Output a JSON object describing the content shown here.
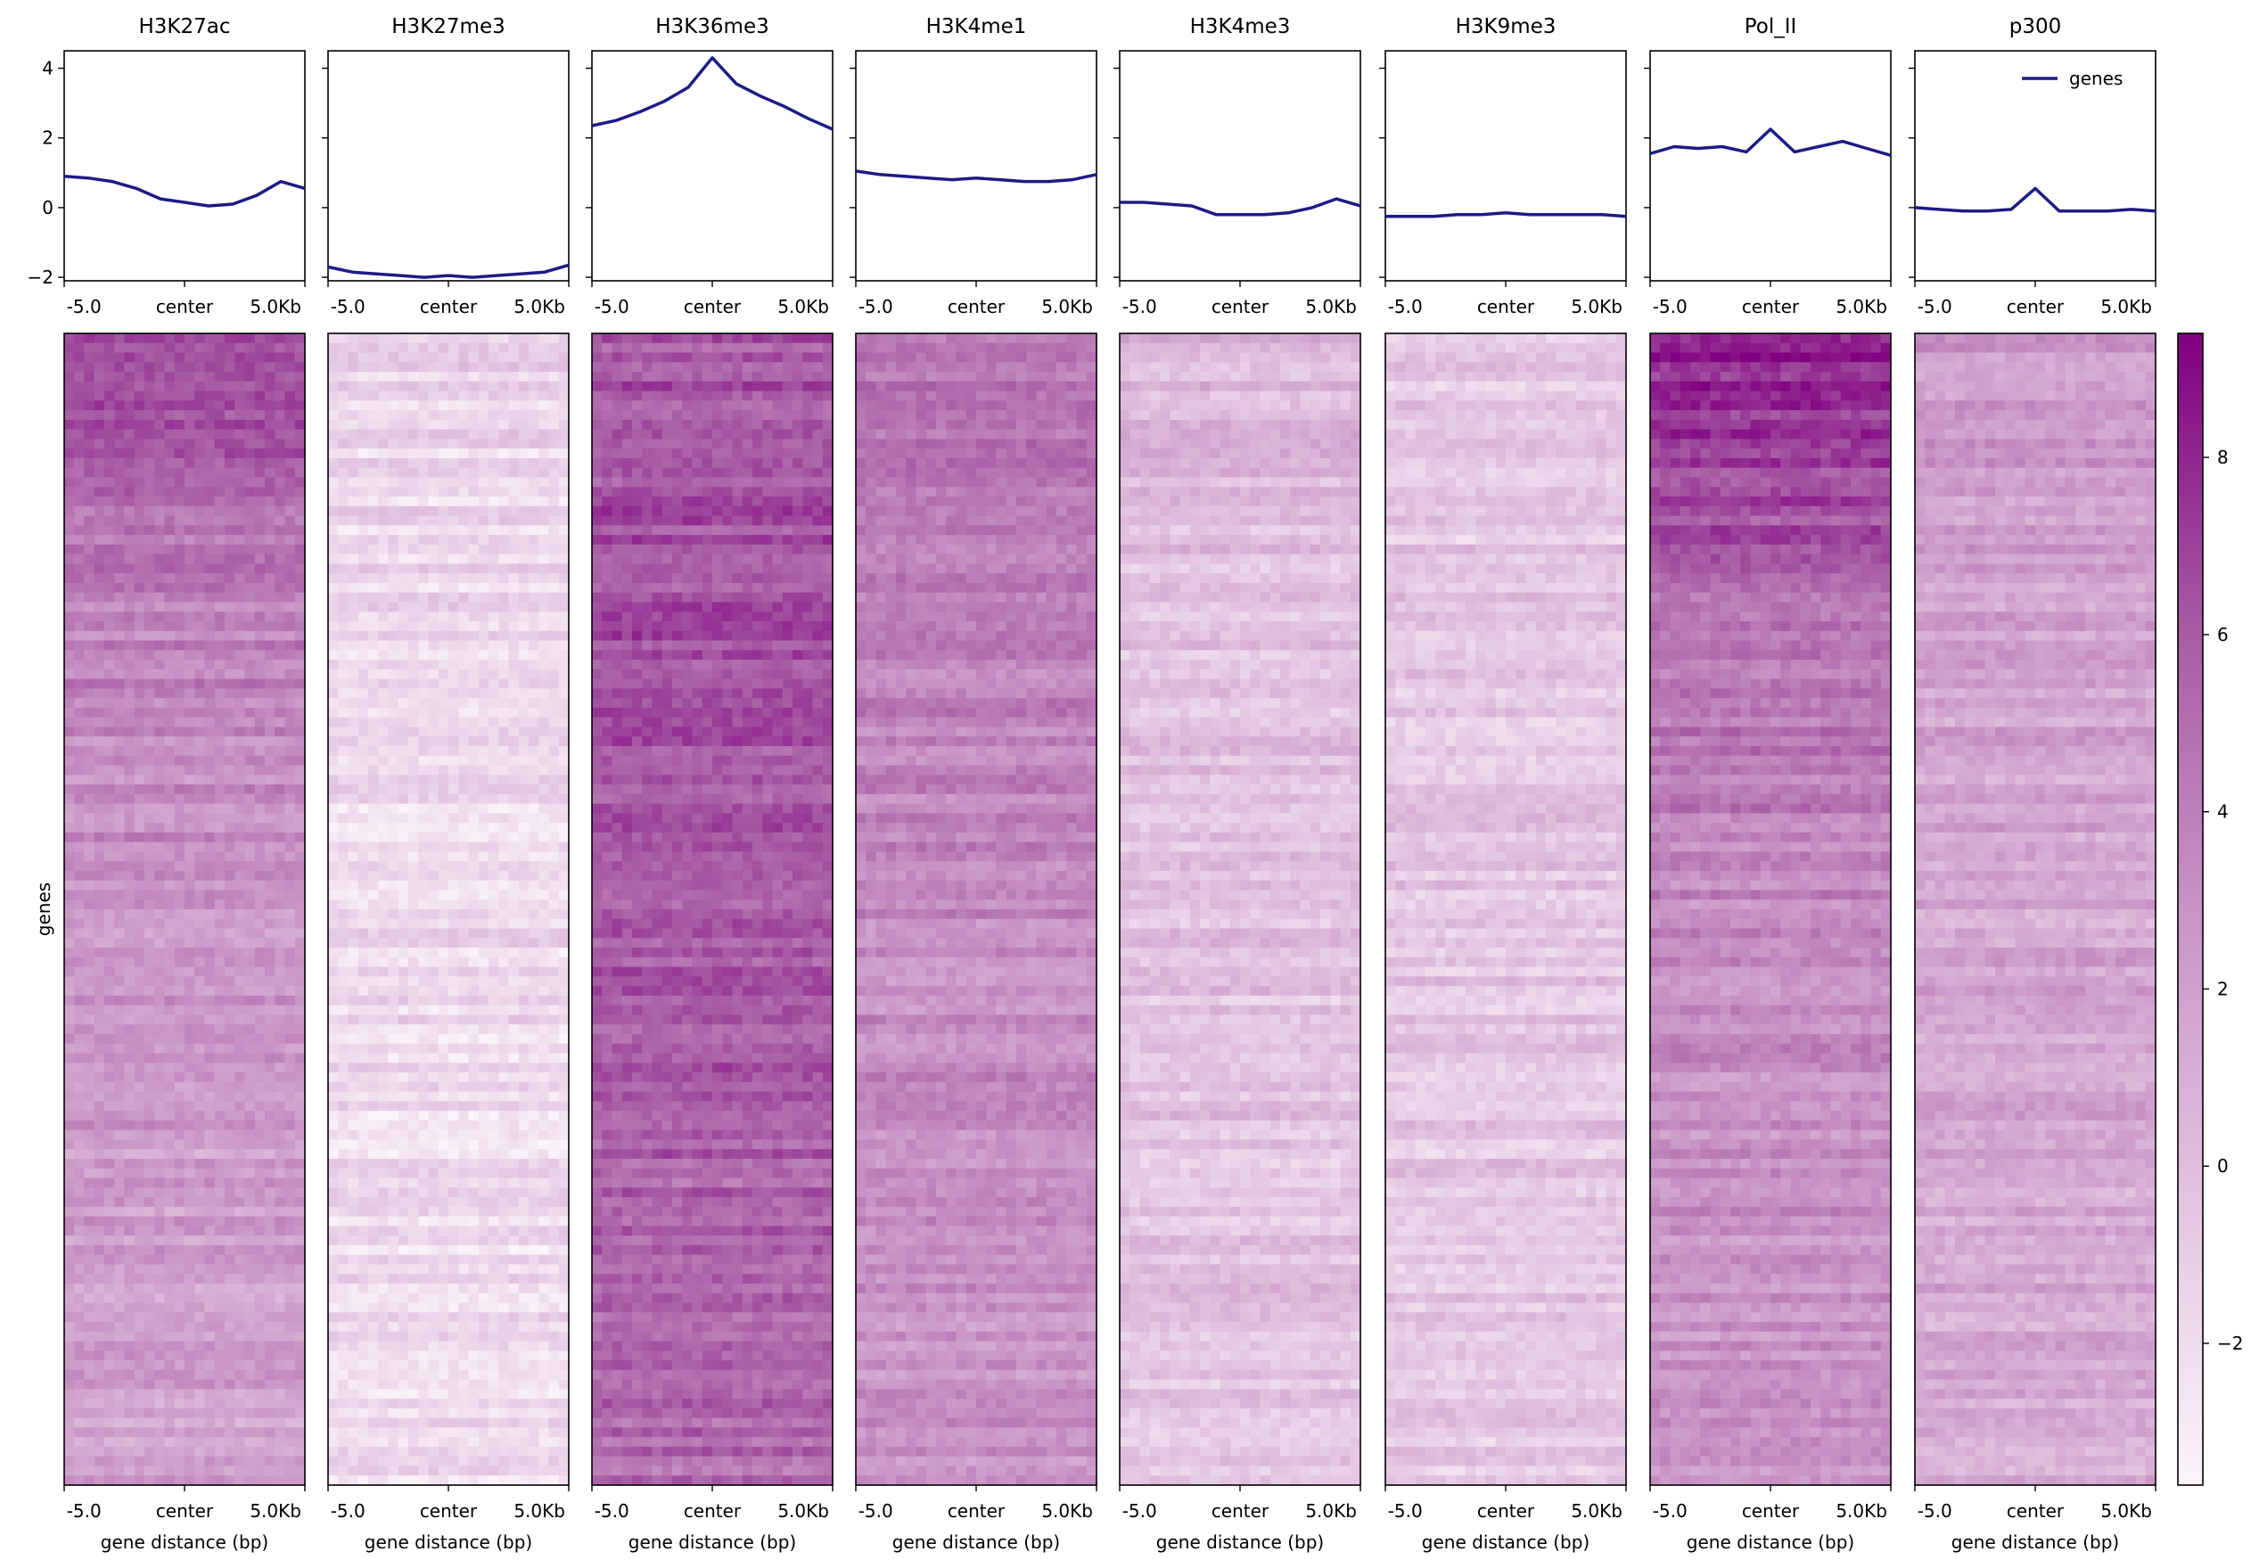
{
  "chart_data": {
    "type": "heatmap",
    "panels": [
      "H3K27ac",
      "H3K27me3",
      "H3K36me3",
      "H3K4me1",
      "H3K4me3",
      "H3K9me3",
      "Pol_II",
      "p300"
    ],
    "x_ticks": [
      "-5.0",
      "center",
      "5.0Kb"
    ],
    "xlabel": "gene distance (bp)",
    "ylabel": "genes",
    "profile": {
      "legend": "genes",
      "legend_position": "top-right",
      "ylim": [
        -2.1,
        4.5
      ],
      "yticks": [
        -2,
        0,
        2,
        4
      ],
      "line_color": "#1c1c86",
      "bins_x": [
        -5,
        -4,
        -3,
        -2,
        -1,
        0,
        1,
        2,
        3,
        4,
        5
      ],
      "series": [
        {
          "panel": "H3K27ac",
          "values": [
            0.9,
            0.85,
            0.75,
            0.55,
            0.25,
            0.15,
            0.05,
            0.1,
            0.35,
            0.75,
            0.55
          ]
        },
        {
          "panel": "H3K27me3",
          "values": [
            -1.7,
            -1.85,
            -1.9,
            -1.95,
            -2.0,
            -1.95,
            -2.0,
            -1.95,
            -1.9,
            -1.85,
            -1.65
          ]
        },
        {
          "panel": "H3K36me3",
          "values": [
            2.35,
            2.5,
            2.75,
            3.05,
            3.45,
            4.3,
            3.55,
            3.2,
            2.9,
            2.55,
            2.25
          ]
        },
        {
          "panel": "H3K4me1",
          "values": [
            1.05,
            0.95,
            0.9,
            0.85,
            0.8,
            0.85,
            0.8,
            0.75,
            0.75,
            0.8,
            0.95
          ]
        },
        {
          "panel": "H3K4me3",
          "values": [
            0.15,
            0.15,
            0.1,
            0.05,
            -0.2,
            -0.2,
            -0.2,
            -0.15,
            0.0,
            0.25,
            0.05
          ]
        },
        {
          "panel": "H3K9me3",
          "values": [
            -0.25,
            -0.25,
            -0.25,
            -0.2,
            -0.2,
            -0.15,
            -0.2,
            -0.2,
            -0.2,
            -0.2,
            -0.25
          ]
        },
        {
          "panel": "Pol_II",
          "values": [
            1.55,
            1.75,
            1.7,
            1.75,
            1.6,
            2.25,
            1.6,
            1.75,
            1.9,
            1.7,
            1.5
          ]
        },
        {
          "panel": "p300",
          "values": [
            0.0,
            -0.05,
            -0.1,
            -0.1,
            -0.05,
            0.55,
            -0.1,
            -0.1,
            -0.1,
            -0.05,
            -0.1
          ]
        }
      ]
    },
    "heatmap_summary": {
      "description_rows": [
        "top",
        "upper",
        "middle",
        "lower",
        "bottom"
      ],
      "panels": [
        {
          "panel": "H3K27ac",
          "mean_by_row": [
            6.5,
            4.0,
            2.8,
            2.2,
            1.8
          ]
        },
        {
          "panel": "H3K27me3",
          "mean_by_row": [
            -1.5,
            -1.8,
            -1.9,
            -2.0,
            -2.0
          ]
        },
        {
          "panel": "H3K36me3",
          "mean_by_row": [
            6.0,
            6.5,
            6.0,
            5.5,
            5.0
          ]
        },
        {
          "panel": "H3K4me1",
          "mean_by_row": [
            5.0,
            4.0,
            3.5,
            3.0,
            2.8
          ]
        },
        {
          "panel": "H3K4me3",
          "mean_by_row": [
            0.5,
            -0.2,
            -0.3,
            -0.3,
            -0.3
          ]
        },
        {
          "panel": "H3K9me3",
          "mean_by_row": [
            -0.5,
            -0.5,
            -0.5,
            -0.5,
            -0.5
          ]
        },
        {
          "panel": "Pol_II",
          "mean_by_row": [
            8.5,
            5.0,
            3.5,
            3.0,
            2.5
          ]
        },
        {
          "panel": "p300",
          "mean_by_row": [
            2.5,
            2.0,
            1.5,
            1.5,
            1.3
          ]
        }
      ]
    },
    "colorbar": {
      "ticks": [
        -2,
        0,
        2,
        4,
        6,
        8
      ],
      "range": [
        -3.6,
        9.4
      ],
      "colors": [
        "#fbf4fa",
        "#a02c96",
        "#800080"
      ]
    }
  }
}
